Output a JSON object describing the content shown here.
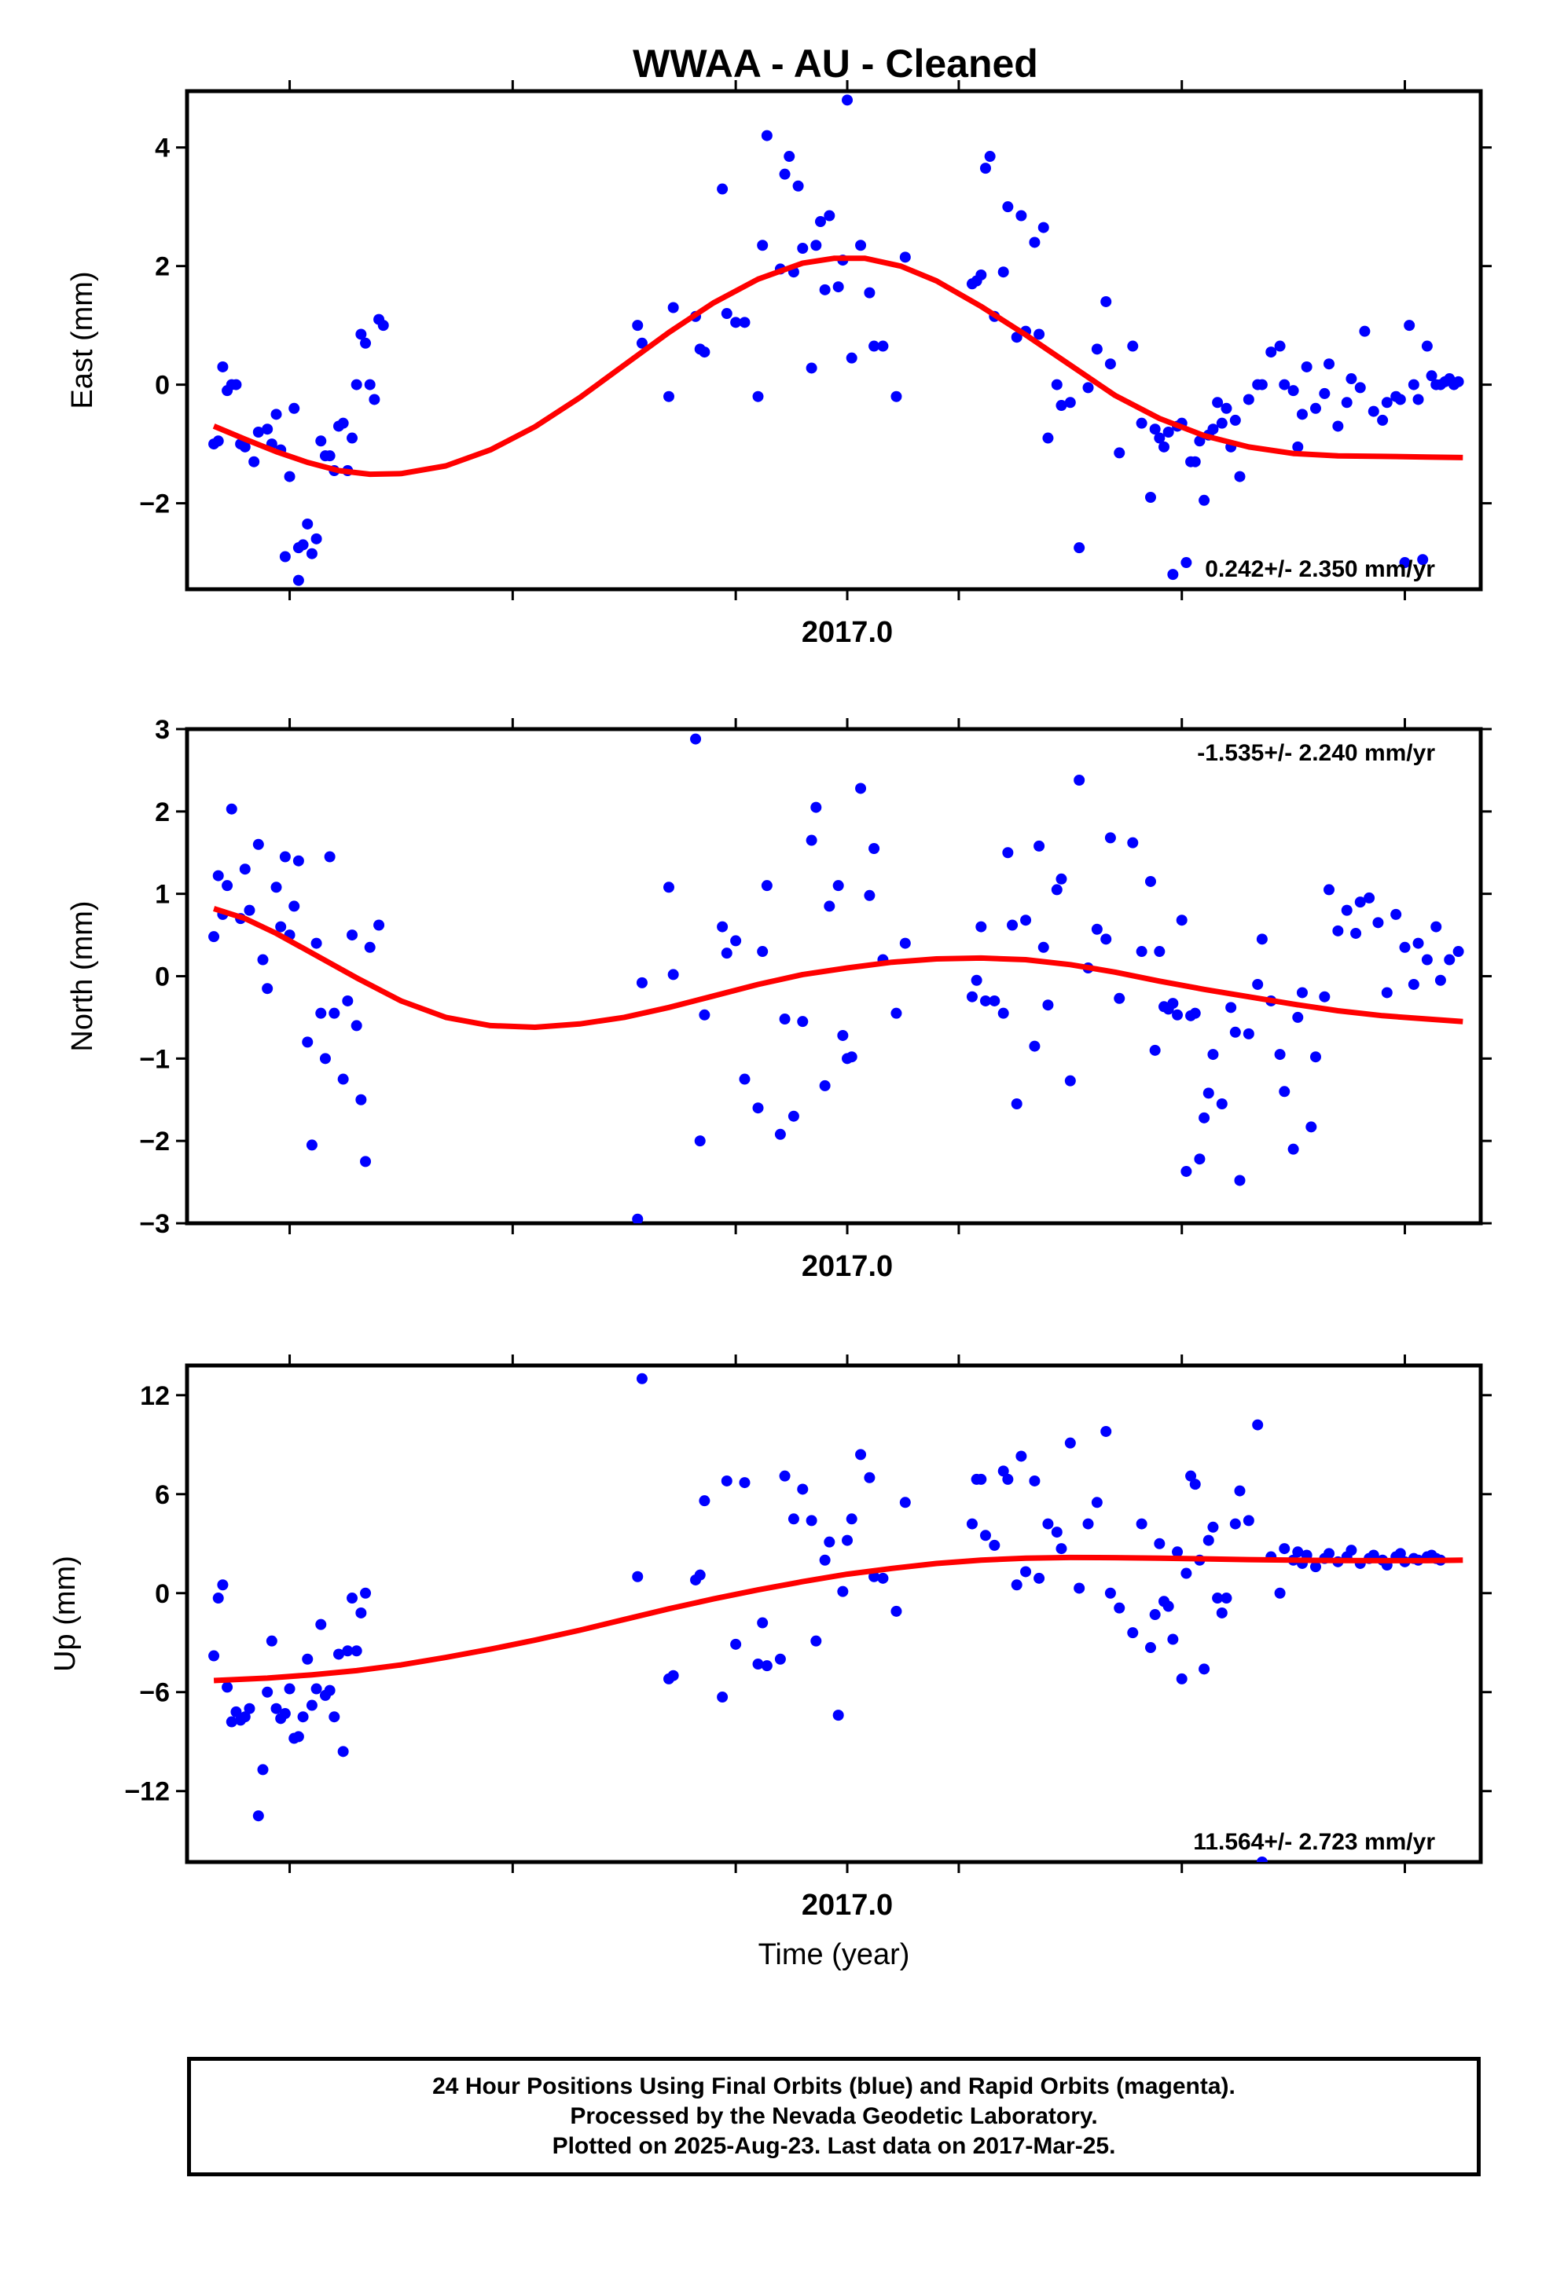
{
  "title": "WWAA  - AU - Cleaned",
  "footer": {
    "line1": "24 Hour Positions Using Final Orbits (blue) and Rapid Orbits (magenta).",
    "line2": "Processed by the Nevada Geodetic Laboratory.",
    "line3": "Plotted on 2025-Aug-23. Last data on 2017-Mar-25."
  },
  "colors": {
    "points": "#0000ff",
    "fit": "#ff0000",
    "frame": "#000000"
  },
  "chart_data": [
    {
      "type": "scatter",
      "ylabel": "East (mm)",
      "xtick_label": "2017.0",
      "rate_label": "0.242+/- 2.350 mm/yr",
      "rate_position": "bottom-right",
      "xlim": [
        2015.52,
        2018.42
      ],
      "ylim": [
        -3.45,
        4.95
      ],
      "yticks": [
        -2,
        0,
        2,
        4
      ],
      "ytick_labels": [
        "−2",
        "0",
        "2",
        "4"
      ],
      "xticks": [
        2015.75,
        2016.25,
        2016.75,
        2017.0,
        2017.25,
        2017.75,
        2018.25
      ],
      "points_x": [
        2015.58,
        2015.59,
        2015.6,
        2015.61,
        2015.62,
        2015.63,
        2015.64,
        2015.65,
        2015.67,
        2015.68,
        2015.7,
        2015.71,
        2015.72,
        2015.73,
        2015.74,
        2015.75,
        2015.76,
        2015.77,
        2015.77,
        2015.78,
        2015.79,
        2015.8,
        2015.81,
        2015.82,
        2015.83,
        2015.84,
        2015.85,
        2015.86,
        2015.87,
        2015.88,
        2015.89,
        2015.9,
        2015.91,
        2015.92,
        2015.93,
        2015.94,
        2015.95,
        2015.96,
        2016.53,
        2016.54,
        2016.6,
        2016.61,
        2016.66,
        2016.67,
        2016.68,
        2016.72,
        2016.73,
        2016.75,
        2016.77,
        2016.8,
        2016.81,
        2016.82,
        2016.85,
        2016.86,
        2016.87,
        2016.88,
        2016.89,
        2016.9,
        2016.92,
        2016.93,
        2016.94,
        2016.95,
        2016.96,
        2016.98,
        2016.99,
        2017.0,
        2017.01,
        2017.03,
        2017.05,
        2017.06,
        2017.08,
        2017.11,
        2017.13,
        2017.28,
        2017.29,
        2017.3,
        2017.31,
        2017.32,
        2017.33,
        2017.35,
        2017.36,
        2017.38,
        2017.39,
        2017.4,
        2017.42,
        2017.43,
        2017.44,
        2017.45,
        2017.47,
        2017.48,
        2017.5,
        2017.52,
        2017.54,
        2017.56,
        2017.58,
        2017.59,
        2017.61,
        2017.64,
        2017.66,
        2017.68,
        2017.69,
        2017.7,
        2017.71,
        2017.72,
        2017.73,
        2017.74,
        2017.75,
        2017.76,
        2017.77,
        2017.78,
        2017.79,
        2017.8,
        2017.81,
        2017.82,
        2017.83,
        2017.84,
        2017.85,
        2017.86,
        2017.87,
        2017.88,
        2017.9,
        2017.92,
        2017.93,
        2017.95,
        2017.97,
        2017.98,
        2018.0,
        2018.01,
        2018.02,
        2018.03,
        2018.05,
        2018.07,
        2018.08,
        2018.1,
        2018.12,
        2018.13,
        2018.15,
        2018.16,
        2018.18,
        2018.2,
        2018.21,
        2018.23,
        2018.24,
        2018.25,
        2018.26,
        2018.27,
        2018.28,
        2018.29,
        2018.3,
        2018.31,
        2018.32,
        2018.33,
        2018.34,
        2018.35,
        2018.36,
        2018.37
      ],
      "points_y": [
        -1.0,
        -0.95,
        0.3,
        -0.1,
        0.0,
        0.0,
        -1.0,
        -1.05,
        -1.3,
        -0.8,
        -0.75,
        -1.0,
        -0.5,
        -1.1,
        -2.9,
        -1.55,
        -0.4,
        -2.75,
        -3.3,
        -2.7,
        -2.35,
        -2.85,
        -2.6,
        -0.95,
        -1.2,
        -1.2,
        -1.45,
        -0.7,
        -0.65,
        -1.45,
        -0.9,
        0.0,
        0.85,
        0.7,
        0.0,
        -0.25,
        1.1,
        1.0,
        1.0,
        0.7,
        -0.2,
        1.3,
        1.15,
        0.6,
        0.55,
        3.3,
        1.2,
        1.05,
        1.05,
        -0.2,
        2.35,
        4.2,
        1.95,
        3.55,
        3.85,
        1.9,
        3.35,
        2.3,
        0.28,
        2.35,
        2.75,
        1.6,
        2.85,
        1.65,
        2.1,
        4.8,
        0.45,
        2.35,
        1.55,
        0.65,
        0.65,
        -0.2,
        2.15,
        1.7,
        1.75,
        1.85,
        3.65,
        3.85,
        1.15,
        1.9,
        3.0,
        0.8,
        2.85,
        0.9,
        2.4,
        0.85,
        2.65,
        -0.9,
        0.0,
        -0.35,
        -0.3,
        -2.75,
        -0.05,
        0.6,
        1.4,
        0.35,
        -1.15,
        0.65,
        -0.65,
        -1.9,
        -0.75,
        -0.9,
        -1.05,
        -0.8,
        -3.2,
        -0.7,
        -0.65,
        -3.0,
        -1.3,
        -1.3,
        -0.95,
        -1.95,
        -0.85,
        -0.75,
        -0.3,
        -0.65,
        -0.4,
        -1.05,
        -0.6,
        -1.55,
        -0.25,
        0.0,
        0.0,
        0.55,
        0.65,
        0.0,
        -0.1,
        -1.05,
        -0.5,
        0.3,
        -0.4,
        -0.15,
        0.35,
        -0.7,
        -0.3,
        0.1,
        -0.05,
        0.9,
        -0.45,
        -0.6,
        -0.3,
        -0.2,
        -0.25,
        -3.0,
        1.0,
        0.0,
        -0.25,
        -2.95,
        0.65,
        0.15,
        0.0,
        0.0,
        0.05,
        0.1,
        0.0,
        0.05,
        0.0
      ],
      "fit": {
        "x": [
          2015.58,
          2015.65,
          2015.72,
          2015.79,
          2015.86,
          2015.93,
          2016.0,
          2016.1,
          2016.2,
          2016.3,
          2016.4,
          2016.5,
          2016.6,
          2016.7,
          2016.8,
          2016.9,
          2016.97,
          2017.04,
          2017.12,
          2017.2,
          2017.3,
          2017.4,
          2017.5,
          2017.6,
          2017.7,
          2017.8,
          2017.9,
          2018.0,
          2018.1,
          2018.2,
          2018.3,
          2018.38
        ],
        "y": [
          -0.7,
          -0.92,
          -1.13,
          -1.31,
          -1.45,
          -1.51,
          -1.5,
          -1.37,
          -1.1,
          -0.71,
          -0.22,
          0.33,
          0.88,
          1.38,
          1.78,
          2.05,
          2.13,
          2.13,
          2.0,
          1.75,
          1.32,
          0.84,
          0.33,
          -0.18,
          -0.57,
          -0.86,
          -1.05,
          -1.16,
          -1.2,
          -1.21,
          -1.22,
          -1.23
        ]
      }
    },
    {
      "type": "scatter",
      "ylabel": "North (mm)",
      "xtick_label": "2017.0",
      "rate_label": "-1.535+/- 2.240 mm/yr",
      "rate_position": "top-right",
      "xlim": [
        2015.52,
        2018.42
      ],
      "ylim": [
        -3,
        3
      ],
      "yticks": [
        -3,
        -2,
        -1,
        0,
        1,
        2,
        3
      ],
      "ytick_labels": [
        "−3",
        "−2",
        "−1",
        "0",
        "1",
        "2",
        "3"
      ],
      "xticks": [
        2015.75,
        2016.25,
        2016.75,
        2017.0,
        2017.25,
        2017.75,
        2018.25
      ],
      "points_x": [
        2015.58,
        2015.59,
        2015.6,
        2015.61,
        2015.62,
        2015.64,
        2015.65,
        2015.66,
        2015.68,
        2015.69,
        2015.7,
        2015.72,
        2015.73,
        2015.74,
        2015.75,
        2015.76,
        2015.77,
        2015.79,
        2015.8,
        2015.81,
        2015.82,
        2015.83,
        2015.84,
        2015.85,
        2015.87,
        2015.88,
        2015.89,
        2015.9,
        2015.91,
        2015.92,
        2015.93,
        2015.95,
        2016.53,
        2016.54,
        2016.6,
        2016.61,
        2016.66,
        2016.67,
        2016.68,
        2016.72,
        2016.73,
        2016.75,
        2016.77,
        2016.8,
        2016.81,
        2016.82,
        2016.85,
        2016.86,
        2016.88,
        2016.9,
        2016.92,
        2016.93,
        2016.95,
        2016.96,
        2016.98,
        2016.99,
        2017.0,
        2017.01,
        2017.03,
        2017.05,
        2017.06,
        2017.08,
        2017.11,
        2017.13,
        2017.28,
        2017.29,
        2017.3,
        2017.31,
        2017.33,
        2017.35,
        2017.36,
        2017.37,
        2017.38,
        2017.4,
        2017.42,
        2017.43,
        2017.44,
        2017.45,
        2017.47,
        2017.48,
        2017.5,
        2017.52,
        2017.54,
        2017.56,
        2017.58,
        2017.59,
        2017.61,
        2017.64,
        2017.66,
        2017.68,
        2017.69,
        2017.7,
        2017.71,
        2017.72,
        2017.73,
        2017.74,
        2017.75,
        2017.76,
        2017.77,
        2017.78,
        2017.79,
        2017.8,
        2017.81,
        2017.82,
        2017.84,
        2017.86,
        2017.87,
        2017.88,
        2017.9,
        2017.92,
        2017.93,
        2017.95,
        2017.97,
        2017.98,
        2018.0,
        2018.01,
        2018.02,
        2018.04,
        2018.05,
        2018.07,
        2018.08,
        2018.1,
        2018.12,
        2018.14,
        2018.15,
        2018.17,
        2018.19,
        2018.21,
        2018.23,
        2018.25,
        2018.27,
        2018.28,
        2018.3,
        2018.32,
        2018.33,
        2018.35,
        2018.37
      ],
      "points_y": [
        0.48,
        1.22,
        0.75,
        1.1,
        2.03,
        0.7,
        1.3,
        0.8,
        1.6,
        0.2,
        -0.15,
        1.08,
        0.6,
        1.45,
        0.5,
        0.85,
        1.4,
        -0.8,
        -2.05,
        0.4,
        -0.45,
        -1.0,
        1.45,
        -0.45,
        -1.25,
        -0.3,
        0.5,
        -0.6,
        -1.5,
        -2.25,
        0.35,
        0.62,
        -2.95,
        -0.08,
        1.08,
        0.02,
        2.88,
        -2.0,
        -0.47,
        0.6,
        0.28,
        0.43,
        -1.25,
        -1.6,
        0.3,
        1.1,
        -1.92,
        -0.52,
        -1.7,
        -0.55,
        1.65,
        2.05,
        -1.33,
        0.85,
        1.1,
        -0.72,
        -1.0,
        -0.98,
        2.28,
        0.98,
        1.55,
        0.2,
        -0.45,
        0.4,
        -0.25,
        -0.05,
        0.6,
        -0.3,
        -0.3,
        -0.45,
        1.5,
        0.62,
        -1.55,
        0.68,
        -0.85,
        1.58,
        0.35,
        -0.35,
        1.05,
        1.18,
        -1.27,
        2.38,
        0.1,
        0.57,
        0.45,
        1.68,
        -0.27,
        1.62,
        0.3,
        1.15,
        -0.9,
        0.3,
        -0.37,
        -0.4,
        -0.33,
        -0.47,
        0.68,
        -2.37,
        -0.48,
        -0.45,
        -2.22,
        -1.72,
        -1.42,
        -0.95,
        -1.55,
        -0.38,
        -0.68,
        -2.48,
        -0.7,
        -0.1,
        0.45,
        -0.3,
        -0.95,
        -1.4,
        -2.1,
        -0.5,
        -0.2,
        -1.83,
        -0.98,
        -0.25,
        1.05,
        0.55,
        0.8,
        0.52,
        0.9,
        0.95,
        0.65,
        -0.2,
        0.75,
        0.35,
        -0.1,
        0.4,
        0.2,
        0.6,
        -0.05,
        0.2,
        0.3
      ],
      "fit": {
        "x": [
          2015.58,
          2015.65,
          2015.72,
          2015.8,
          2015.9,
          2016.0,
          2016.1,
          2016.2,
          2016.3,
          2016.4,
          2016.5,
          2016.6,
          2016.7,
          2016.8,
          2016.9,
          2017.0,
          2017.1,
          2017.2,
          2017.3,
          2017.4,
          2017.5,
          2017.6,
          2017.7,
          2017.8,
          2017.9,
          2018.0,
          2018.1,
          2018.2,
          2018.3,
          2018.38
        ],
        "y": [
          0.82,
          0.7,
          0.52,
          0.28,
          -0.02,
          -0.3,
          -0.5,
          -0.6,
          -0.62,
          -0.58,
          -0.5,
          -0.38,
          -0.24,
          -0.1,
          0.02,
          0.1,
          0.17,
          0.21,
          0.22,
          0.2,
          0.14,
          0.05,
          -0.06,
          -0.16,
          -0.25,
          -0.34,
          -0.42,
          -0.48,
          -0.52,
          -0.55
        ]
      }
    },
    {
      "type": "scatter",
      "ylabel": "Up (mm)",
      "xtick_label": "2017.0",
      "xlabel": "Time (year)",
      "rate_label": "11.564+/- 2.723 mm/yr",
      "rate_position": "bottom-right",
      "xlim": [
        2015.52,
        2018.42
      ],
      "ylim": [
        -16.3,
        13.8
      ],
      "yticks": [
        -12,
        -6,
        0,
        6,
        12
      ],
      "ytick_labels": [
        "−12",
        "−6",
        "0",
        "6",
        "12"
      ],
      "xticks": [
        2015.75,
        2016.25,
        2016.75,
        2017.0,
        2017.25,
        2017.75,
        2018.25
      ],
      "points_x": [
        2015.58,
        2015.59,
        2015.6,
        2015.61,
        2015.62,
        2015.63,
        2015.64,
        2015.65,
        2015.66,
        2015.68,
        2015.69,
        2015.7,
        2015.71,
        2015.72,
        2015.73,
        2015.74,
        2015.75,
        2015.76,
        2015.77,
        2015.78,
        2015.79,
        2015.8,
        2015.81,
        2015.82,
        2015.83,
        2015.84,
        2015.85,
        2015.86,
        2015.87,
        2015.88,
        2015.89,
        2015.9,
        2015.91,
        2015.92,
        2016.53,
        2016.54,
        2016.6,
        2016.61,
        2016.66,
        2016.67,
        2016.68,
        2016.72,
        2016.73,
        2016.75,
        2016.77,
        2016.8,
        2016.81,
        2016.82,
        2016.85,
        2016.86,
        2016.88,
        2016.9,
        2016.92,
        2016.93,
        2016.95,
        2016.96,
        2016.98,
        2016.99,
        2017.0,
        2017.01,
        2017.03,
        2017.05,
        2017.06,
        2017.08,
        2017.11,
        2017.13,
        2017.28,
        2017.29,
        2017.3,
        2017.31,
        2017.33,
        2017.35,
        2017.36,
        2017.38,
        2017.39,
        2017.4,
        2017.42,
        2017.43,
        2017.45,
        2017.47,
        2017.48,
        2017.5,
        2017.52,
        2017.54,
        2017.56,
        2017.58,
        2017.59,
        2017.61,
        2017.64,
        2017.66,
        2017.68,
        2017.69,
        2017.7,
        2017.71,
        2017.72,
        2017.73,
        2017.74,
        2017.75,
        2017.76,
        2017.77,
        2017.78,
        2017.79,
        2017.8,
        2017.81,
        2017.82,
        2017.83,
        2017.84,
        2017.85,
        2017.87,
        2017.88,
        2017.9,
        2017.92,
        2017.93,
        2017.95,
        2017.97,
        2017.98,
        2018.0,
        2018.01,
        2018.02,
        2018.03,
        2018.05,
        2018.07,
        2018.08,
        2018.1,
        2018.12,
        2018.13,
        2018.15,
        2018.17,
        2018.18,
        2018.2,
        2018.21,
        2018.23,
        2018.24,
        2018.25,
        2018.27,
        2018.28,
        2018.3,
        2018.31,
        2018.32,
        2018.33,
        2018.35,
        2018.37
      ],
      "points_y": [
        -3.8,
        -0.3,
        0.5,
        -5.7,
        -7.8,
        -7.2,
        -7.7,
        -7.5,
        -7.0,
        -13.5,
        -10.7,
        -6.0,
        -2.9,
        -7.0,
        -7.6,
        -7.3,
        -5.8,
        -8.8,
        -8.7,
        -7.5,
        -4.0,
        -6.8,
        -5.8,
        -1.9,
        -6.2,
        -5.9,
        -7.5,
        -3.7,
        -9.6,
        -3.5,
        -0.3,
        -3.5,
        -1.2,
        0.0,
        1.0,
        13.0,
        -5.2,
        -5.0,
        0.8,
        1.1,
        5.6,
        -6.3,
        6.8,
        -3.1,
        6.7,
        -4.3,
        -1.8,
        -4.4,
        -4.0,
        7.1,
        4.5,
        6.3,
        4.4,
        -2.9,
        2.0,
        3.1,
        -7.4,
        0.1,
        3.2,
        4.5,
        8.4,
        7.0,
        1.0,
        0.9,
        -1.1,
        5.5,
        4.2,
        6.9,
        6.9,
        3.5,
        2.9,
        7.4,
        6.9,
        0.5,
        8.3,
        1.3,
        6.8,
        0.9,
        4.2,
        3.7,
        2.7,
        9.1,
        0.3,
        4.2,
        5.5,
        9.8,
        0.0,
        -0.9,
        -2.4,
        4.2,
        -3.3,
        -1.3,
        3.0,
        -0.5,
        -0.8,
        -2.8,
        2.5,
        -5.2,
        1.2,
        7.1,
        6.6,
        2.0,
        -4.6,
        3.2,
        4.0,
        -0.3,
        -1.2,
        -0.3,
        4.2,
        6.2,
        4.4,
        10.2,
        -16.3,
        2.2,
        0.0,
        2.7,
        2.0,
        2.5,
        1.8,
        2.3,
        1.6,
        2.1,
        2.4,
        1.9,
        2.2,
        2.6,
        1.8,
        2.1,
        2.3,
        2.0,
        1.7,
        2.2,
        2.4,
        1.9,
        2.1,
        2.0,
        2.2,
        2.3,
        2.1,
        2.0
      ],
      "fit": {
        "x": [
          2015.58,
          2015.7,
          2015.8,
          2015.9,
          2016.0,
          2016.1,
          2016.2,
          2016.3,
          2016.4,
          2016.5,
          2016.6,
          2016.7,
          2016.8,
          2016.9,
          2017.0,
          2017.1,
          2017.2,
          2017.3,
          2017.4,
          2017.5,
          2017.6,
          2017.7,
          2017.8,
          2017.9,
          2018.0,
          2018.1,
          2018.2,
          2018.3,
          2018.38
        ],
        "y": [
          -5.3,
          -5.15,
          -4.95,
          -4.7,
          -4.35,
          -3.9,
          -3.4,
          -2.85,
          -2.25,
          -1.6,
          -0.95,
          -0.35,
          0.2,
          0.7,
          1.15,
          1.5,
          1.8,
          2.0,
          2.12,
          2.16,
          2.15,
          2.12,
          2.08,
          2.03,
          2.0,
          1.98,
          1.97,
          1.97,
          2.0
        ]
      }
    }
  ]
}
